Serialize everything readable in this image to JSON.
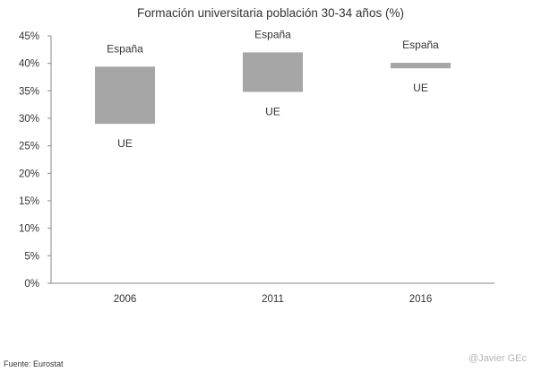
{
  "chart_data": {
    "type": "floating-bar",
    "title": "Formación universitaria población 30-34 años (%)",
    "categories": [
      "2006",
      "2011",
      "2016"
    ],
    "series": [
      {
        "name": "España",
        "values": [
          39.4,
          42.0,
          40.1
        ]
      },
      {
        "name": "UE",
        "values": [
          29.0,
          34.8,
          39.1
        ]
      }
    ],
    "ylim": [
      0,
      45
    ],
    "yticks": [
      "0%",
      "5%",
      "10%",
      "15%",
      "20%",
      "25%",
      "30%",
      "35%",
      "40%",
      "45%"
    ],
    "bar_color": "#a6a6a6",
    "grid": false
  },
  "footer": {
    "source": "Fuente:  Eurostat",
    "credit": "@Javier GEc"
  }
}
